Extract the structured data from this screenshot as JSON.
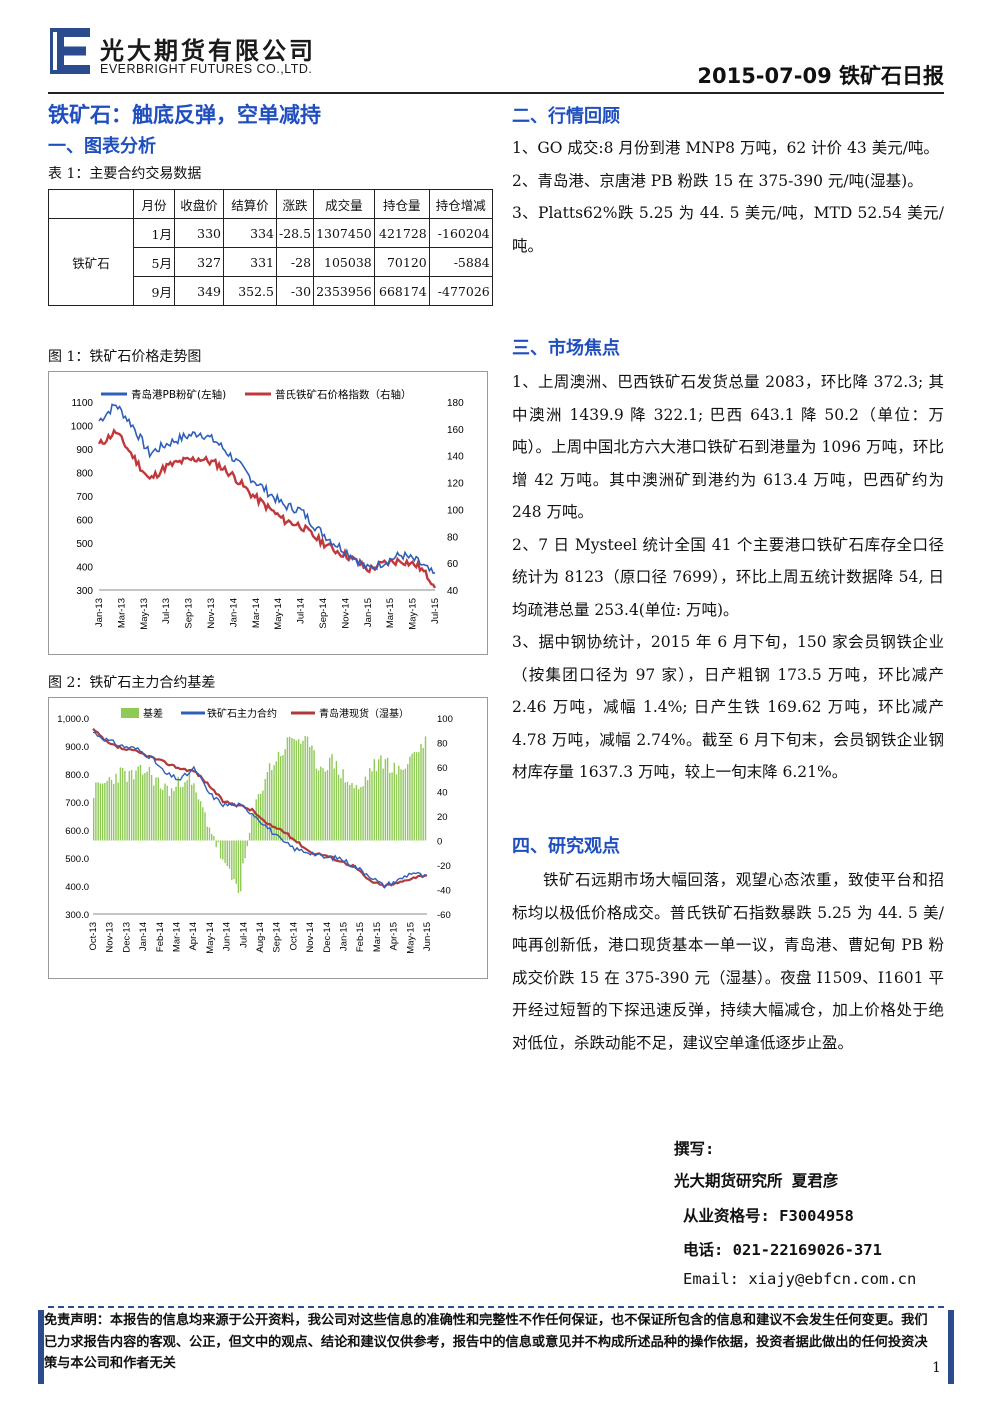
{
  "header": {
    "company_cn": "光大期货有限公司",
    "company_en": "EVERBRIGHT FUTURES CO.,LTD.",
    "date_title": "2015-07-09 铁矿石日报",
    "logo_color": "#2a4b8d"
  },
  "main_title": "铁矿石：触底反弹，空单减持",
  "section1": {
    "title": "一、图表分析"
  },
  "table1": {
    "caption": "表 1：主要合约交易数据",
    "headers": [
      "月份",
      "收盘价",
      "结算价",
      "涨跌",
      "成交量",
      "持仓量",
      "持仓增减"
    ],
    "row_label": "铁矿石",
    "rows": [
      [
        "1月",
        "330",
        "334",
        "-28.5",
        "1307450",
        "421728",
        "-160204"
      ],
      [
        "5月",
        "327",
        "331",
        "-28",
        "105038",
        "70120",
        "-5884"
      ],
      [
        "9月",
        "349",
        "352.5",
        "-30",
        "2353956",
        "668174",
        "-477026"
      ]
    ]
  },
  "fig1": {
    "caption": "图 1：铁矿石价格走势图",
    "legend": [
      "青岛港PB粉矿(左轴)",
      "普氏铁矿石价格指数（右轴）"
    ],
    "left_ticks": [
      "1100",
      "1000",
      "900",
      "800",
      "700",
      "600",
      "500",
      "400",
      "300"
    ],
    "right_ticks": [
      "180",
      "160",
      "140",
      "120",
      "100",
      "80",
      "60",
      "40"
    ],
    "x_ticks": [
      "Jan-13",
      "Mar-13",
      "May-13",
      "Jul-13",
      "Sep-13",
      "Nov-13",
      "Jan-14",
      "Mar-14",
      "May-14",
      "Jul-14",
      "Sep-14",
      "Nov-14",
      "Jan-15",
      "Mar-15",
      "May-15",
      "Jul-15"
    ],
    "colors": {
      "pb": "#2f5fb8",
      "platts": "#c0383b"
    }
  },
  "fig2": {
    "caption": "图 2：铁矿石主力合约基差",
    "legend": [
      "基差",
      "铁矿石主力合约",
      "青岛港现货（湿基）"
    ],
    "left_ticks": [
      "1,000.0",
      "900.0",
      "800.0",
      "700.0",
      "600.0",
      "500.0",
      "400.0",
      "300.0"
    ],
    "right_ticks": [
      "100",
      "80",
      "60",
      "40",
      "20",
      "0",
      "-20",
      "-40",
      "-60"
    ],
    "x_ticks": [
      "Oct-13",
      "Nov-13",
      "Dec-13",
      "Jan-14",
      "Feb-14",
      "Mar-14",
      "Apr-14",
      "May-14",
      "Jun-14",
      "Jul-14",
      "Aug-14",
      "Sep-14",
      "Oct-14",
      "Nov-14",
      "Dec-14",
      "Jan-15",
      "Feb-15",
      "Mar-15",
      "Apr-15",
      "May-15",
      "Jun-15"
    ],
    "colors": {
      "basis": "#8fc956",
      "futures": "#2f5fb8",
      "spot": "#b03a3a"
    }
  },
  "section2": {
    "title": "二、行情回顾",
    "paragraphs": [
      "1、GO 成交:8 月份到港 MNP8 万吨，62 计价 43 美元/吨。",
      "2、青岛港、京唐港 PB 粉跌 15 在 375-390 元/吨(湿基)。",
      "3、Platts62%跌 5.25 为 44. 5 美元/吨，MTD 52.54 美元/吨。"
    ]
  },
  "section3": {
    "title": "三、市场焦点",
    "paragraphs": [
      "1、上周澳洲、巴西铁矿石发货总量 2083，环比降 372.3; 其中澳洲 1439.9 降 322.1; 巴西 643.1 降 50.2（单位：万吨）。上周中国北方六大港口铁矿石到港量为 1096 万吨，环比增 42 万吨。其中澳洲矿到港约为 613.4 万吨，巴西矿约为 248 万吨。",
      "2、7 日 Mysteel 统计全国 41 个主要港口铁矿石库存全口径统计为 8123（原口径 7699），环比上周五统计数据降 54, 日均疏港总量 253.4(单位: 万吨)。",
      "3、据中钢协统计，2015 年 6 月下旬，150 家会员钢铁企业（按集团口径为 97 家），日产粗钢 173.5 万吨，环比减产 2.46 万吨，减幅 1.4%; 日产生铁 169.62 万吨，环比减产 4.78 万吨，减幅 2.74%。截至 6 月下旬末，会员钢铁企业钢材库存量 1637.3 万吨，较上一旬末降 6.21%。"
    ]
  },
  "section4": {
    "title": "四、研究观点",
    "paragraph": "铁矿石远期市场大幅回落，观望心态浓重，致使平台和招标均以极低价格成交。普氏铁矿石指数暴跌 5.25 为 44. 5 美/吨再创新低，港口现货基本一单一议，青岛港、曹妃甸 PB 粉成交价跌 15 在 375-390 元（湿基）。夜盘 I1509、I1601 平开经过短暂的下探迅速反弹，持续大幅减仓，加上价格处于绝对低位，杀跌动能不足，建议空单逢低逐步止盈。"
  },
  "signature": {
    "label": "撰写:",
    "author": "光大期货研究所 夏君彦",
    "license": "从业资格号: F3004958",
    "phone": "电话: 021-22169026-371",
    "email": "Email: xiajy@ebfcn.com.cn"
  },
  "disclaimer": "免责声明：本报告的信息均来源于公开资料，我公司对这些信息的准确性和完整性不作任何保证，也不保证所包含的信息和建议不会发生任何变更。我们已力求报告内容的客观、公正，但文中的观点、结论和建议仅供参考，报告中的信息或意见并不构成所述品种的操作依据，投资者据此做出的任何投资决策与本公司和作者无关",
  "page_number": "1"
}
